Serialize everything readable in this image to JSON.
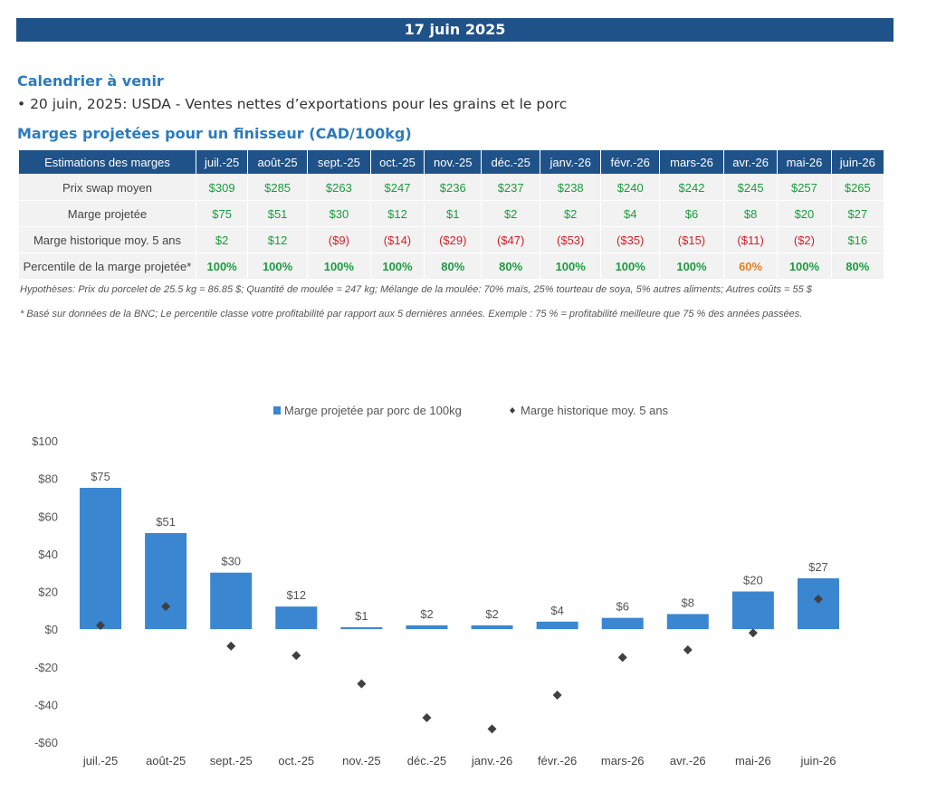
{
  "header": {
    "date": "17 juin 2025"
  },
  "calendar": {
    "title": "Calendrier à venir",
    "item": "• 20 juin, 2025: USDA - Ventes nettes d’exportations pour les grains et le porc"
  },
  "margins_section": {
    "title": "Marges projetées pour un finisseur (CAD/100kg)"
  },
  "table": {
    "corner_label": "Estimations des marges",
    "months": [
      "juil.-25",
      "août-25",
      "sept.-25",
      "oct.-25",
      "nov.-25",
      "déc.-25",
      "janv.-26",
      "févr.-26",
      "mars-26",
      "avr.-26",
      "mai-26",
      "juin-26"
    ],
    "rows": [
      {
        "label": "Prix swap moyen",
        "values": [
          "$309",
          "$285",
          "$263",
          "$247",
          "$236",
          "$237",
          "$238",
          "$240",
          "$242",
          "$245",
          "$257",
          "$265"
        ],
        "colors": [
          "pos",
          "pos",
          "pos",
          "pos",
          "pos",
          "pos",
          "pos",
          "pos",
          "pos",
          "pos",
          "pos",
          "pos"
        ],
        "bold": false
      },
      {
        "label": "Marge projetée",
        "values": [
          "$75",
          "$51",
          "$30",
          "$12",
          "$1",
          "$2",
          "$2",
          "$4",
          "$6",
          "$8",
          "$20",
          "$27"
        ],
        "colors": [
          "pos",
          "pos",
          "pos",
          "pos",
          "pos",
          "pos",
          "pos",
          "pos",
          "pos",
          "pos",
          "pos",
          "pos"
        ],
        "bold": false
      },
      {
        "label": "Marge historique moy. 5 ans",
        "values": [
          "$2",
          "$12",
          "($9)",
          "($14)",
          "($29)",
          "($47)",
          "($53)",
          "($35)",
          "($15)",
          "($11)",
          "($2)",
          "$16"
        ],
        "colors": [
          "pos",
          "pos",
          "neg",
          "neg",
          "neg",
          "neg",
          "neg",
          "neg",
          "neg",
          "neg",
          "neg",
          "pos"
        ],
        "bold": false
      },
      {
        "label": "Percentile de la marge projetée*",
        "values": [
          "100%",
          "100%",
          "100%",
          "100%",
          "80%",
          "80%",
          "100%",
          "100%",
          "100%",
          "60%",
          "100%",
          "80%"
        ],
        "colors": [
          "pos",
          "pos",
          "pos",
          "pos",
          "pos",
          "pos",
          "pos",
          "pos",
          "pos",
          "orange",
          "pos",
          "pos"
        ],
        "bold": true
      }
    ]
  },
  "notes": {
    "assumptions": "Hypothèses: Prix du porcelet de 25.5 kg = 86.85 $; Quantité de moulée = 247 kg; Mélange de la moulée: 70% maïs, 25% tourteau de soya, 5% autres aliments; Autres coûts = 55 $",
    "footnote": "* Basé sur données de la BNC; Le percentile classe votre profitabilité par rapport aux 5 dernières années. Exemple : 75 % = profitabilité meilleure que 75 % des années passées."
  },
  "colors": {
    "header": "#1f5288",
    "accent": "#2b7bbf",
    "bar": "#3a86d0",
    "marker": "#404040",
    "positive": "#1a9c3e",
    "negative": "#d0212a",
    "orange": "#e67e22"
  },
  "chart_data": {
    "type": "bar",
    "categories": [
      "juil.-25",
      "août-25",
      "sept.-25",
      "oct.-25",
      "nov.-25",
      "déc.-25",
      "janv.-26",
      "févr.-26",
      "mars-26",
      "avr.-26",
      "mai-26",
      "juin-26"
    ],
    "series": [
      {
        "name": "Marge projetée par porc de 100kg",
        "type": "bar",
        "values": [
          75,
          51,
          30,
          12,
          1,
          2,
          2,
          4,
          6,
          8,
          20,
          27
        ],
        "labels": [
          "$75",
          "$51",
          "$30",
          "$12",
          "$1",
          "$2",
          "$2",
          "$4",
          "$6",
          "$8",
          "$20",
          "$27"
        ]
      },
      {
        "name": "Marge historique moy. 5 ans",
        "type": "scatter",
        "values": [
          2,
          12,
          -9,
          -14,
          -29,
          -47,
          -53,
          -35,
          -15,
          -11,
          -2,
          16
        ]
      }
    ],
    "ylim": [
      -60,
      100
    ],
    "yticks": [
      100,
      80,
      60,
      40,
      20,
      0,
      -20,
      -40,
      -60
    ],
    "ytick_labels": [
      "$100",
      "$80",
      "$60",
      "$40",
      "$20",
      "$0",
      "-$20",
      "-$40",
      "-$60"
    ],
    "legend_position": "top-center",
    "grid": false
  }
}
